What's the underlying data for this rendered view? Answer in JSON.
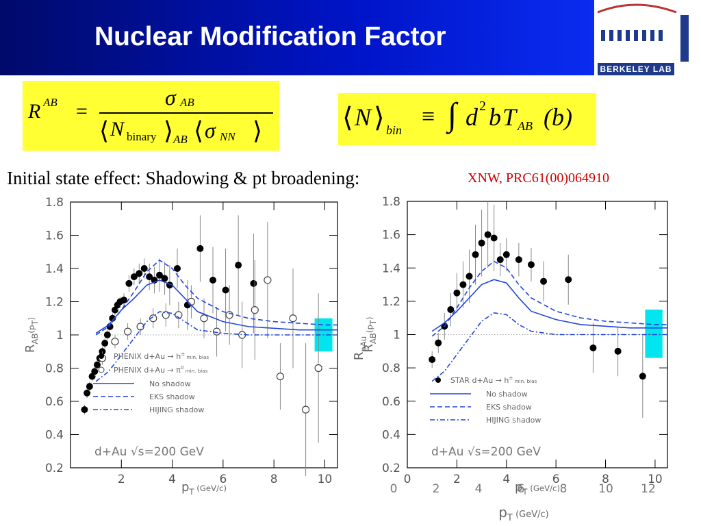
{
  "slide": {
    "title": "Nuclear Modification Factor",
    "subtitle": "Initial state effect: Shadowing & pt broadening:",
    "reference": "XNW, PRC61(00)064910",
    "logo_text": "BERKELEY LAB",
    "formula_left": {
      "lhs": "R",
      "lhs_sup": "AB",
      "equals": "=",
      "num": "σ",
      "num_sub": "AB",
      "den_n": "N",
      "den_n_sub": "binary",
      "den_n_out_sub": "AB",
      "den_sigma": "σ",
      "den_sigma_sub": "NN"
    },
    "formula_right": {
      "n": "N",
      "n_sub": "bin",
      "equiv": "≡",
      "integral": "∫",
      "d": "d",
      "sup2": "2",
      "b": "b",
      "t": "T",
      "t_sub": "AB",
      "arg": "(b)"
    }
  },
  "colors": {
    "header": "#0014c8",
    "formula_bg": "#ffff33",
    "theory": "#2244dd",
    "band": "#00e5ee",
    "reference": "#cc0000"
  },
  "chart_data": [
    {
      "type": "scatter",
      "xlabel": "p",
      "xlabel_sub": "T",
      "xlabel_unit": "(GeV/c)",
      "ylabel": "R",
      "ylabel_sub": "AB",
      "ylabel_arg": "(p",
      "ylabel_arg_sub": "T",
      "ylabel_arg_end": ")",
      "xlim": [
        0,
        10.5
      ],
      "ylim": [
        0.2,
        1.8
      ],
      "xticks": [
        "2",
        "4",
        "6",
        "8",
        "10"
      ],
      "yticks": [
        "0.2",
        "0.4",
        "0.6",
        "0.8",
        "1",
        "1.2",
        "1.4",
        "1.6",
        "1.8"
      ],
      "annotation": "d+Au √s=200 GeV",
      "legend": [
        {
          "label": "PHENIX d+Au → h",
          "label_sup": "±",
          "label_end": " min. bias",
          "marker": "filled"
        },
        {
          "label": "PHENIX d+Au → π",
          "label_sup": "0",
          "label_end": " min. bias",
          "marker": "open"
        },
        {
          "label": "No shadow",
          "style": "solid"
        },
        {
          "label": "EKS shadow",
          "style": "dashed"
        },
        {
          "label": "HIJING shadow",
          "style": "dashdot"
        }
      ],
      "series": [
        {
          "name": "PHENIX d+Au → h± min. bias",
          "marker": "filled",
          "x": [
            0.55,
            0.65,
            0.75,
            0.85,
            0.95,
            1.05,
            1.15,
            1.25,
            1.35,
            1.45,
            1.55,
            1.65,
            1.75,
            1.85,
            1.95,
            2.1,
            2.3,
            2.5,
            2.7,
            2.9,
            3.1,
            3.3,
            3.5,
            3.7,
            3.9,
            4.2,
            4.6,
            5.1,
            5.6,
            6.1,
            6.6,
            7.2
          ],
          "y": [
            0.55,
            0.65,
            0.69,
            0.75,
            0.78,
            0.82,
            0.86,
            0.9,
            0.95,
            1.0,
            1.05,
            1.1,
            1.15,
            1.18,
            1.2,
            1.21,
            1.31,
            1.35,
            1.37,
            1.4,
            1.35,
            1.33,
            1.36,
            1.34,
            1.3,
            1.4,
            1.18,
            1.52,
            1.33,
            1.27,
            1.42,
            1.31
          ],
          "yerr": [
            0.03,
            0.03,
            0.03,
            0.03,
            0.03,
            0.03,
            0.03,
            0.03,
            0.03,
            0.03,
            0.03,
            0.03,
            0.03,
            0.03,
            0.03,
            0.04,
            0.05,
            0.05,
            0.06,
            0.06,
            0.08,
            0.08,
            0.1,
            0.1,
            0.12,
            0.12,
            0.15,
            0.2,
            0.2,
            0.25,
            0.3,
            0.3
          ]
        },
        {
          "name": "PHENIX d+Au → π0 min. bias",
          "marker": "open",
          "x": [
            1.25,
            1.75,
            2.25,
            2.75,
            3.25,
            3.75,
            4.25,
            4.75,
            5.25,
            5.75,
            6.25,
            6.75,
            7.25,
            7.75,
            8.25,
            8.75,
            9.25,
            9.75
          ],
          "y": [
            0.86,
            0.96,
            1.02,
            1.05,
            1.1,
            1.12,
            1.12,
            1.2,
            1.1,
            1.02,
            1.12,
            1.0,
            1.15,
            1.33,
            0.75,
            1.1,
            0.55,
            0.8
          ],
          "yerr": [
            0.04,
            0.04,
            0.05,
            0.05,
            0.06,
            0.07,
            0.08,
            0.1,
            0.12,
            0.15,
            0.18,
            0.2,
            0.3,
            0.35,
            0.2,
            0.3,
            0.4,
            0.45
          ]
        },
        {
          "name": "No shadow",
          "style": "solid",
          "x": [
            1,
            1.5,
            2,
            2.5,
            3,
            3.5,
            4,
            4.5,
            5,
            6,
            7,
            8,
            9,
            10,
            10.5
          ],
          "y": [
            1.01,
            1.06,
            1.15,
            1.22,
            1.3,
            1.33,
            1.3,
            1.22,
            1.14,
            1.08,
            1.05,
            1.04,
            1.03,
            1.03,
            1.03
          ]
        },
        {
          "name": "EKS shadow",
          "style": "dashed",
          "x": [
            1,
            1.5,
            2,
            2.5,
            3,
            3.5,
            4,
            4.5,
            5,
            6,
            7,
            8,
            9,
            10,
            10.5
          ],
          "y": [
            1.0,
            1.05,
            1.15,
            1.26,
            1.38,
            1.45,
            1.4,
            1.3,
            1.22,
            1.14,
            1.1,
            1.08,
            1.07,
            1.06,
            1.06
          ]
        },
        {
          "name": "HIJING shadow",
          "style": "dashdot",
          "x": [
            1,
            1.5,
            2,
            2.5,
            3,
            3.5,
            4,
            4.5,
            5,
            6,
            7,
            8,
            9,
            10,
            10.5
          ],
          "y": [
            0.72,
            0.78,
            0.88,
            0.98,
            1.08,
            1.14,
            1.13,
            1.08,
            1.03,
            1.01,
            1.0,
            1.0,
            1.0,
            1.0,
            1.0
          ]
        }
      ],
      "band": {
        "x": [
          9.6,
          10.3
        ],
        "y": [
          0.9,
          1.1
        ]
      },
      "reference_line": 1
    },
    {
      "type": "scatter",
      "xlabel": "p",
      "xlabel_sub": "T",
      "xlabel_unit": "(GeV/c)",
      "ylabel": "R",
      "ylabel_sub": "AB",
      "ylabel_arg": "(p",
      "ylabel_arg_sub": "T",
      "ylabel_arg_end": ")",
      "ylabel_overlay": "R",
      "ylabel_overlay_sub": "pAu",
      "xlim": [
        0,
        10.5
      ],
      "ylim": [
        0.2,
        1.8
      ],
      "xticks": [
        "0",
        "2",
        "4",
        "6",
        "8",
        "10"
      ],
      "yticks": [
        "0.2",
        "0.4",
        "0.6",
        "0.8",
        "1",
        "1.2",
        "1.4",
        "1.6",
        "1.8"
      ],
      "annotation": "d+Au √s=200 GeV",
      "bottom_xlabel": "p",
      "bottom_xlabel_sub": "T",
      "bottom_xlabel_unit": "(GeV/c)",
      "bottom_xticks": [
        "0",
        "2",
        "4",
        "6",
        "8",
        "10",
        "12"
      ],
      "legend": [
        {
          "label": "STAR d+Au → h",
          "label_sup": "±",
          "label_end": " min. bias",
          "marker": "filled"
        },
        {
          "label": "No shadow",
          "style": "solid"
        },
        {
          "label": "EKS shadow",
          "style": "dashed"
        },
        {
          "label": "HIJING shadow",
          "style": "dashdot"
        }
      ],
      "series": [
        {
          "name": "STAR d+Au → h± min. bias",
          "marker": "filled",
          "x": [
            1.0,
            1.25,
            1.5,
            1.75,
            2.0,
            2.25,
            2.5,
            2.75,
            3.0,
            3.25,
            3.5,
            3.75,
            4.0,
            4.5,
            5.0,
            5.5,
            6.5,
            7.5,
            8.5,
            9.5
          ],
          "y": [
            0.85,
            0.95,
            1.05,
            1.15,
            1.25,
            1.3,
            1.35,
            1.48,
            1.55,
            1.6,
            1.58,
            1.45,
            1.48,
            1.45,
            1.42,
            1.32,
            1.33,
            0.92,
            0.9,
            0.75
          ],
          "yerr": [
            0.05,
            0.06,
            0.08,
            0.1,
            0.12,
            0.14,
            0.16,
            0.18,
            0.2,
            0.2,
            0.2,
            0.1,
            0.1,
            0.1,
            0.1,
            0.12,
            0.15,
            0.15,
            0.15,
            0.25
          ]
        },
        {
          "name": "No shadow",
          "style": "solid",
          "x": [
            1,
            1.5,
            2,
            2.5,
            3,
            3.5,
            4,
            4.5,
            5,
            6,
            7,
            8,
            9,
            10,
            10.5
          ],
          "y": [
            1.02,
            1.07,
            1.14,
            1.22,
            1.3,
            1.33,
            1.31,
            1.22,
            1.14,
            1.09,
            1.06,
            1.05,
            1.04,
            1.04,
            1.04
          ]
        },
        {
          "name": "EKS shadow",
          "style": "dashed",
          "x": [
            1,
            1.5,
            2,
            2.5,
            3,
            3.5,
            4,
            4.5,
            5,
            6,
            7,
            8,
            9,
            10,
            10.5
          ],
          "y": [
            0.99,
            1.05,
            1.16,
            1.28,
            1.38,
            1.44,
            1.4,
            1.3,
            1.22,
            1.14,
            1.1,
            1.08,
            1.07,
            1.06,
            1.06
          ]
        },
        {
          "name": "HIJING shadow",
          "style": "dashdot",
          "x": [
            1,
            1.5,
            2,
            2.5,
            3,
            3.5,
            4,
            4.5,
            5,
            6,
            7,
            8,
            9,
            10,
            10.5
          ],
          "y": [
            0.72,
            0.78,
            0.88,
            0.98,
            1.08,
            1.13,
            1.12,
            1.06,
            1.02,
            1.0,
            1.0,
            1.0,
            1.0,
            1.0,
            1.0
          ]
        }
      ],
      "band": {
        "x": [
          9.6,
          10.3
        ],
        "y": [
          0.86,
          1.15
        ]
      },
      "reference_line": 1
    }
  ]
}
